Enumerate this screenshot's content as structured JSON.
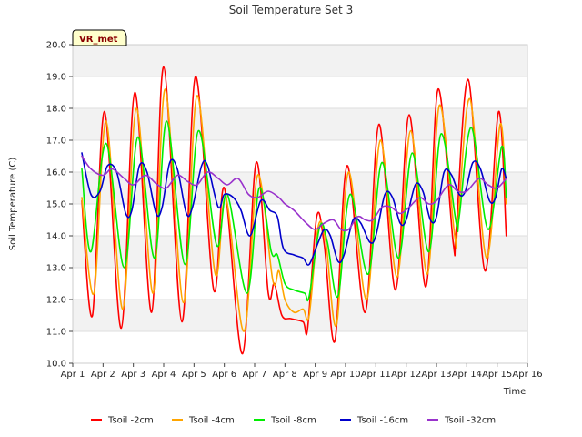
{
  "chart_data": {
    "type": "line",
    "title": "Soil Temperature Set 3",
    "xlabel": "Time",
    "ylabel": "Soil Temperature (C)",
    "tag_label": "VR_met",
    "ylim": [
      10.0,
      20.0
    ],
    "xlim": [
      1,
      16
    ],
    "yticks": [
      "10.0",
      "11.0",
      "12.0",
      "13.0",
      "14.0",
      "15.0",
      "16.0",
      "17.0",
      "18.0",
      "19.0",
      "20.0"
    ],
    "xticks": [
      "Apr 1",
      "Apr 2",
      "Apr 3",
      "Apr 4",
      "Apr 5",
      "Apr 6",
      "Apr 7",
      "Apr 8",
      "Apr 9",
      "Apr 10",
      "Apr 11",
      "Apr 12",
      "Apr 13",
      "Apr 14",
      "Apr 15",
      "Apr 16"
    ],
    "grid": true,
    "legend_position": "bottom",
    "x_unit": "day of April",
    "series": [
      {
        "name": "Tsoil -2cm",
        "color": "#ff0000",
        "points": [
          [
            1.3,
            15.1
          ],
          [
            1.65,
            11.5
          ],
          [
            2.05,
            17.9
          ],
          [
            2.6,
            11.1
          ],
          [
            3.05,
            18.5
          ],
          [
            3.6,
            11.6
          ],
          [
            4.0,
            19.3
          ],
          [
            4.6,
            11.3
          ],
          [
            5.05,
            19.0
          ],
          [
            5.65,
            12.3
          ],
          [
            6.0,
            15.5
          ],
          [
            6.6,
            10.3
          ],
          [
            7.05,
            16.3
          ],
          [
            7.45,
            12.2
          ],
          [
            7.65,
            12.5
          ],
          [
            7.9,
            11.5
          ],
          [
            8.2,
            11.4
          ],
          [
            8.6,
            11.3
          ],
          [
            8.75,
            11.1
          ],
          [
            9.05,
            14.6
          ],
          [
            9.3,
            13.7
          ],
          [
            9.65,
            10.7
          ],
          [
            10.05,
            16.2
          ],
          [
            10.65,
            11.6
          ],
          [
            11.1,
            17.5
          ],
          [
            11.65,
            12.3
          ],
          [
            12.1,
            17.8
          ],
          [
            12.65,
            12.4
          ],
          [
            13.05,
            18.6
          ],
          [
            13.55,
            13.8
          ],
          [
            13.65,
            14.2
          ],
          [
            14.05,
            18.9
          ],
          [
            14.6,
            12.9
          ],
          [
            15.05,
            17.9
          ],
          [
            15.3,
            14.0
          ]
        ]
      },
      {
        "name": "Tsoil -4cm",
        "color": "#ffa500",
        "points": [
          [
            1.3,
            15.2
          ],
          [
            1.7,
            12.2
          ],
          [
            2.1,
            17.6
          ],
          [
            2.65,
            11.7
          ],
          [
            3.1,
            18.0
          ],
          [
            3.65,
            12.2
          ],
          [
            4.05,
            18.6
          ],
          [
            4.65,
            11.9
          ],
          [
            5.1,
            18.4
          ],
          [
            5.7,
            12.8
          ],
          [
            6.05,
            15.2
          ],
          [
            6.65,
            11.0
          ],
          [
            7.1,
            15.9
          ],
          [
            7.6,
            12.6
          ],
          [
            7.8,
            12.9
          ],
          [
            8.0,
            12.0
          ],
          [
            8.3,
            11.6
          ],
          [
            8.6,
            11.7
          ],
          [
            8.8,
            11.5
          ],
          [
            9.1,
            14.3
          ],
          [
            9.35,
            13.8
          ],
          [
            9.7,
            11.2
          ],
          [
            10.1,
            16.0
          ],
          [
            10.7,
            12.0
          ],
          [
            11.15,
            17.0
          ],
          [
            11.7,
            12.7
          ],
          [
            12.15,
            17.3
          ],
          [
            12.7,
            12.8
          ],
          [
            13.1,
            18.1
          ],
          [
            13.6,
            14.0
          ],
          [
            13.7,
            14.3
          ],
          [
            14.1,
            18.3
          ],
          [
            14.65,
            13.3
          ],
          [
            15.1,
            17.5
          ],
          [
            15.3,
            15.0
          ]
        ]
      },
      {
        "name": "Tsoil -8cm",
        "color": "#00ee00",
        "points": [
          [
            1.3,
            16.1
          ],
          [
            1.6,
            13.5
          ],
          [
            2.1,
            16.9
          ],
          [
            2.7,
            13.0
          ],
          [
            3.15,
            17.1
          ],
          [
            3.7,
            13.3
          ],
          [
            4.1,
            17.6
          ],
          [
            4.7,
            13.1
          ],
          [
            5.15,
            17.3
          ],
          [
            5.75,
            13.7
          ],
          [
            6.1,
            15.3
          ],
          [
            6.75,
            12.2
          ],
          [
            7.15,
            15.5
          ],
          [
            7.55,
            13.5
          ],
          [
            7.75,
            13.4
          ],
          [
            8.0,
            12.5
          ],
          [
            8.3,
            12.3
          ],
          [
            8.65,
            12.2
          ],
          [
            8.8,
            12.1
          ],
          [
            9.15,
            14.3
          ],
          [
            9.4,
            13.8
          ],
          [
            9.75,
            12.1
          ],
          [
            10.15,
            15.3
          ],
          [
            10.75,
            12.8
          ],
          [
            11.2,
            16.3
          ],
          [
            11.75,
            13.3
          ],
          [
            12.2,
            16.6
          ],
          [
            12.75,
            13.5
          ],
          [
            13.15,
            17.2
          ],
          [
            13.65,
            14.4
          ],
          [
            13.75,
            14.6
          ],
          [
            14.15,
            17.4
          ],
          [
            14.7,
            14.2
          ],
          [
            15.15,
            16.8
          ],
          [
            15.3,
            15.2
          ]
        ]
      },
      {
        "name": "Tsoil -16cm",
        "color": "#0000cc",
        "points": [
          [
            1.3,
            16.6
          ],
          [
            1.6,
            15.3
          ],
          [
            1.9,
            15.4
          ],
          [
            2.15,
            16.2
          ],
          [
            2.45,
            16.0
          ],
          [
            2.75,
            14.7
          ],
          [
            2.95,
            14.8
          ],
          [
            3.2,
            16.2
          ],
          [
            3.45,
            16.0
          ],
          [
            3.75,
            14.7
          ],
          [
            3.95,
            14.9
          ],
          [
            4.2,
            16.3
          ],
          [
            4.45,
            16.1
          ],
          [
            4.75,
            14.7
          ],
          [
            4.95,
            14.9
          ],
          [
            5.25,
            16.2
          ],
          [
            5.45,
            16.2
          ],
          [
            5.8,
            14.9
          ],
          [
            6.0,
            15.3
          ],
          [
            6.3,
            15.2
          ],
          [
            6.55,
            14.8
          ],
          [
            6.85,
            14.0
          ],
          [
            7.2,
            15.1
          ],
          [
            7.5,
            14.8
          ],
          [
            7.75,
            14.6
          ],
          [
            7.95,
            13.6
          ],
          [
            8.3,
            13.4
          ],
          [
            8.6,
            13.3
          ],
          [
            8.8,
            13.1
          ],
          [
            9.1,
            13.8
          ],
          [
            9.3,
            14.2
          ],
          [
            9.5,
            14.0
          ],
          [
            9.75,
            13.2
          ],
          [
            9.95,
            13.4
          ],
          [
            10.25,
            14.5
          ],
          [
            10.5,
            14.4
          ],
          [
            10.8,
            13.8
          ],
          [
            11.0,
            14.0
          ],
          [
            11.3,
            15.3
          ],
          [
            11.55,
            15.2
          ],
          [
            11.8,
            14.4
          ],
          [
            12.0,
            14.5
          ],
          [
            12.3,
            15.6
          ],
          [
            12.55,
            15.4
          ],
          [
            12.8,
            14.5
          ],
          [
            13.0,
            14.6
          ],
          [
            13.25,
            16.0
          ],
          [
            13.5,
            15.9
          ],
          [
            13.75,
            15.3
          ],
          [
            13.95,
            15.4
          ],
          [
            14.2,
            16.3
          ],
          [
            14.45,
            16.1
          ],
          [
            14.75,
            15.1
          ],
          [
            14.95,
            15.2
          ],
          [
            15.15,
            16.1
          ],
          [
            15.3,
            15.8
          ]
        ]
      },
      {
        "name": "Tsoil -32cm",
        "color": "#9932cc",
        "points": [
          [
            1.3,
            16.5
          ],
          [
            1.6,
            16.1
          ],
          [
            2.0,
            15.9
          ],
          [
            2.3,
            16.1
          ],
          [
            2.7,
            15.8
          ],
          [
            3.0,
            15.6
          ],
          [
            3.4,
            15.9
          ],
          [
            3.8,
            15.6
          ],
          [
            4.1,
            15.5
          ],
          [
            4.45,
            15.9
          ],
          [
            4.8,
            15.7
          ],
          [
            5.1,
            15.6
          ],
          [
            5.45,
            16.0
          ],
          [
            5.8,
            15.8
          ],
          [
            6.1,
            15.6
          ],
          [
            6.45,
            15.8
          ],
          [
            6.8,
            15.3
          ],
          [
            7.1,
            15.2
          ],
          [
            7.45,
            15.4
          ],
          [
            7.8,
            15.2
          ],
          [
            8.0,
            15.0
          ],
          [
            8.3,
            14.8
          ],
          [
            8.7,
            14.4
          ],
          [
            9.0,
            14.2
          ],
          [
            9.3,
            14.4
          ],
          [
            9.6,
            14.5
          ],
          [
            9.85,
            14.2
          ],
          [
            10.1,
            14.2
          ],
          [
            10.4,
            14.6
          ],
          [
            10.65,
            14.5
          ],
          [
            10.9,
            14.5
          ],
          [
            11.2,
            14.9
          ],
          [
            11.5,
            14.9
          ],
          [
            11.8,
            14.7
          ],
          [
            12.1,
            14.9
          ],
          [
            12.45,
            15.2
          ],
          [
            12.75,
            15.0
          ],
          [
            13.0,
            15.1
          ],
          [
            13.4,
            15.6
          ],
          [
            13.7,
            15.4
          ],
          [
            14.0,
            15.4
          ],
          [
            14.4,
            15.8
          ],
          [
            14.7,
            15.6
          ],
          [
            15.0,
            15.5
          ],
          [
            15.3,
            15.8
          ]
        ]
      }
    ]
  }
}
